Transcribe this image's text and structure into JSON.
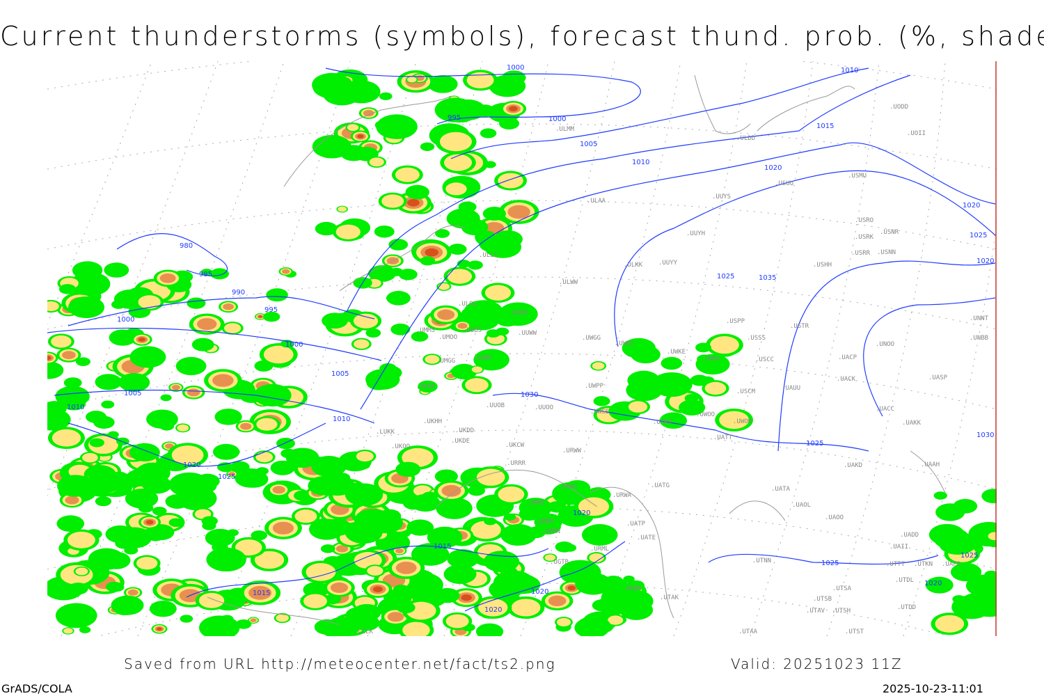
{
  "title": "Current thunderstorms (symbols), forecast thund. prob. (%, shaded)",
  "footer": {
    "source": "Saved from URL http://meteocenter.net/fact/ts2.png",
    "valid": "Valid: 20251023 11Z",
    "software": "GrADS/COLA",
    "timestamp": "2025-10-23-11:01"
  },
  "colors": {
    "low_prob": "#00ee00",
    "mid_prob": "#ffe680",
    "high_prob": "#e89050",
    "very_high_prob": "#d8501c",
    "isobar": "#1f3bff",
    "coast": "#999999",
    "frame": "#c0392b"
  },
  "isobars": [
    "1000",
    "1010",
    "995",
    "1000",
    "1005",
    "1010",
    "1015",
    "1020",
    "980",
    "985",
    "990",
    "995",
    "1000",
    "1000",
    "1005",
    "1005",
    "1010",
    "1010",
    "1020",
    "1025",
    "1030",
    "1035",
    "1025",
    "1020",
    "1025",
    "1020",
    "1030",
    "1025",
    "1015",
    "1015",
    "1020",
    "1020",
    "1020",
    "1025",
    "1025",
    "1020"
  ],
  "stations": [
    "ULMM",
    "ULDD",
    "UODD",
    "UOII",
    "USUU",
    "USMU",
    "UUYS",
    "USRO",
    "USRK",
    "USNR",
    "USRR",
    "USNN",
    "USHH",
    "UUYH",
    "ULKK",
    "UUYY",
    "ULWW",
    "ULAA",
    "ULLI",
    "ULOL",
    "UUEM",
    "UUWW",
    "UMMS",
    "UMOO",
    "UUBS",
    "UWGG",
    "UWKS",
    "USPP",
    "USSS",
    "USTR",
    "UNOO",
    "UACP",
    "USCC",
    "UNNT",
    "UNBB",
    "UMGG",
    "UUBP",
    "UWKE",
    "UWUU",
    "USCM",
    "UAUU",
    "UACK",
    "UASP",
    "UKKK",
    "UUOO",
    "UUOB",
    "UWPP",
    "UWSS",
    "UARR",
    "UWOO",
    "UWOR",
    "UACC",
    "UAKK",
    "LUKK",
    "UKHH",
    "UKDD",
    "UKDE",
    "UKOO",
    "UKCW",
    "URWW",
    "UATT",
    "URRR",
    "URWI",
    "URWA",
    "UATG",
    "URMT",
    "URMM",
    "URMN",
    "URML",
    "UATP",
    "UATE",
    "UATA",
    "UAOL",
    "UAOO",
    "UAKD",
    "UAAH",
    "UAII",
    "UADD",
    "UTTT",
    "UTKN",
    "UAFO",
    "UTNN",
    "UTDL",
    "UTSA",
    "UTSB",
    "UTST",
    "UTAV",
    "UTSH",
    "UTDD",
    "UTAK",
    "UTAA",
    "UGTB",
    "UBBB",
    "LCLK"
  ]
}
